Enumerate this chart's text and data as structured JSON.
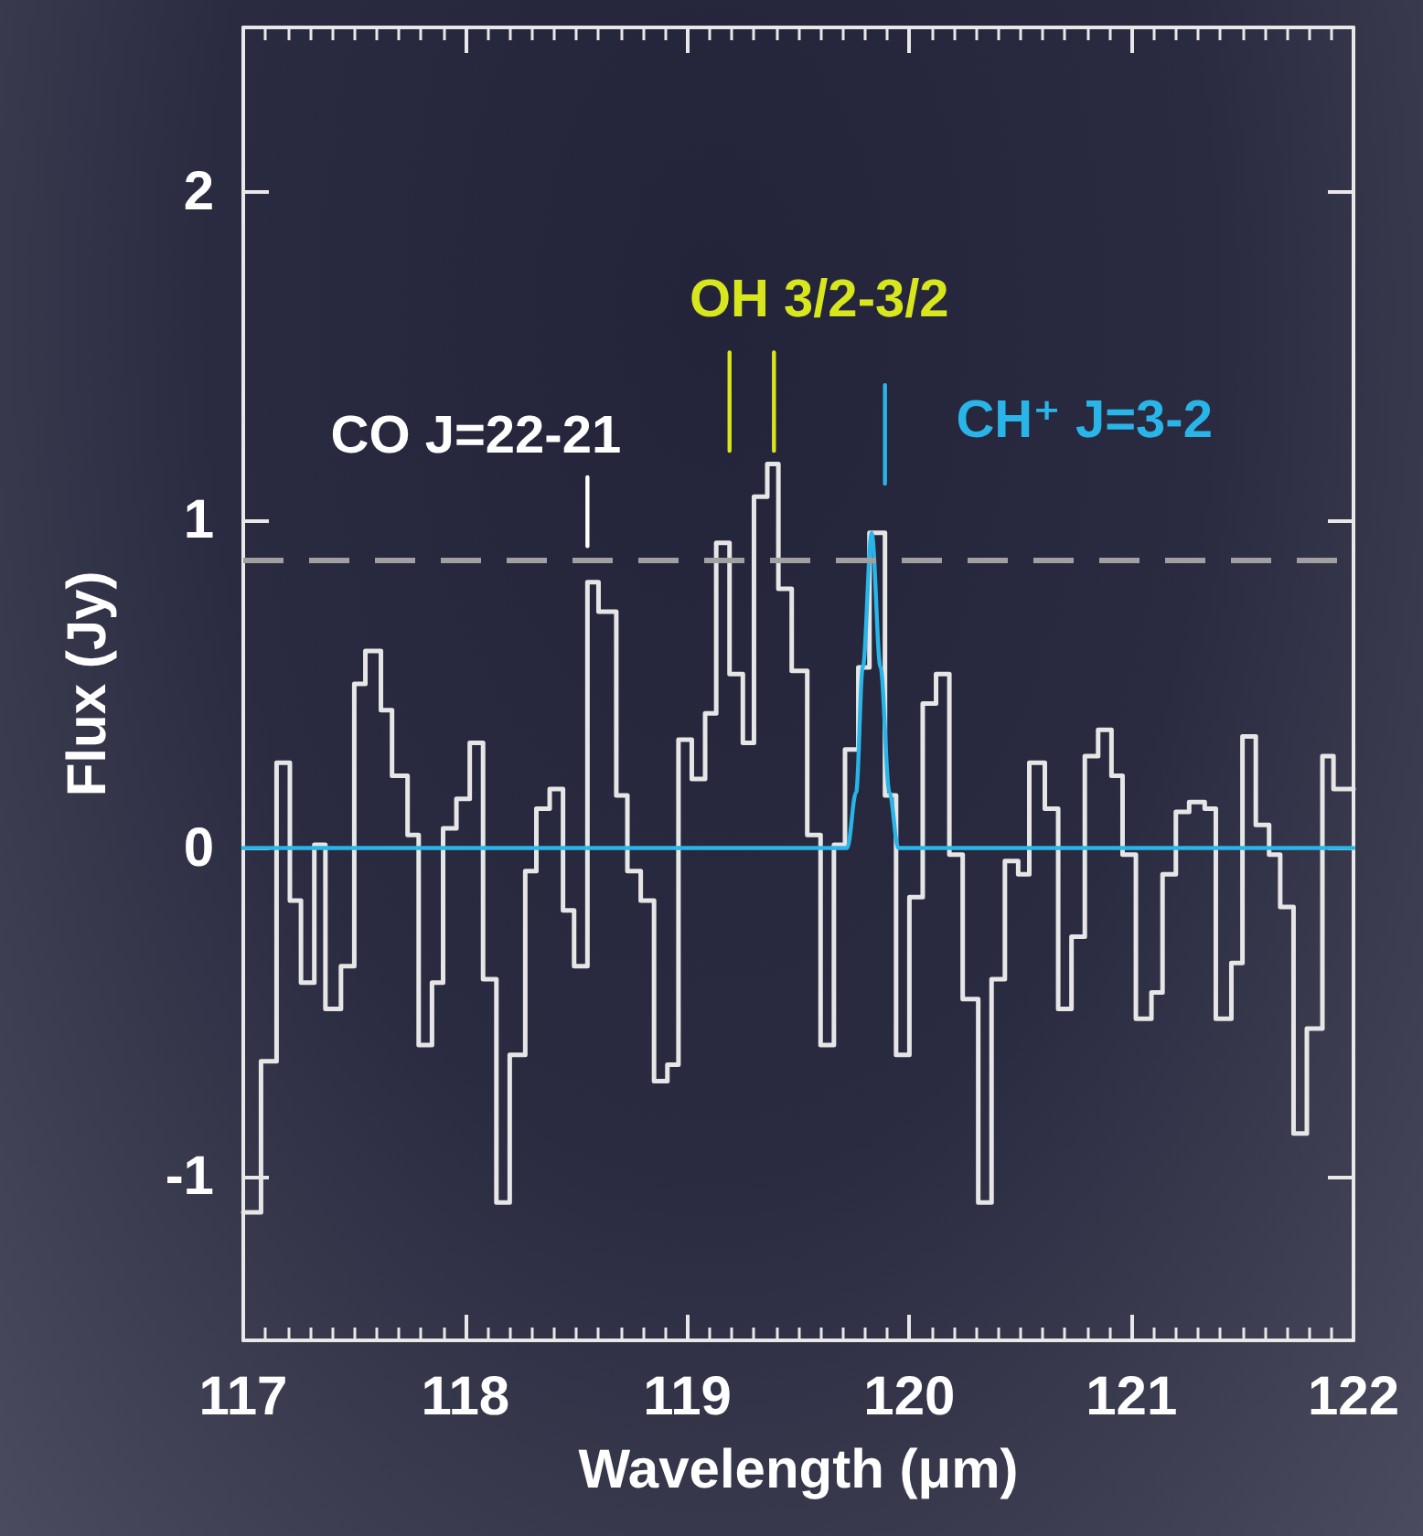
{
  "chart_data": {
    "type": "step",
    "xlabel": "Wavelength (μm)",
    "ylabel": "Flux (Jy)",
    "xlim": [
      117,
      122
    ],
    "xticks": [
      117,
      118,
      119,
      120,
      121,
      122
    ],
    "ylim": [
      -1.5,
      2.5
    ],
    "yticks": [
      -1,
      0,
      1,
      2
    ],
    "grid": false,
    "legend": false,
    "ref_lines": [
      {
        "axis": "y",
        "value": 0.88,
        "color": "#a0a0a0",
        "line_style": "dashed"
      }
    ],
    "series": [
      {
        "color": "#e6e6e6",
        "x": [
          117.0,
          117.08,
          117.15,
          117.21,
          117.26,
          117.32,
          117.37,
          117.44,
          117.5,
          117.55,
          117.62,
          117.67,
          117.74,
          117.79,
          117.85,
          117.9,
          117.96,
          118.02,
          118.08,
          118.14,
          118.2,
          118.27,
          118.32,
          118.38,
          118.44,
          118.49,
          118.55,
          118.6,
          118.68,
          118.73,
          118.79,
          118.85,
          118.91,
          118.96,
          119.02,
          119.08,
          119.13,
          119.19,
          119.25,
          119.3,
          119.36,
          119.41,
          119.47,
          119.54,
          119.6,
          119.66,
          119.71,
          119.77,
          119.82,
          119.89,
          119.94,
          120.0,
          120.06,
          120.12,
          120.18,
          120.24,
          120.31,
          120.37,
          120.43,
          120.49,
          120.54,
          120.61,
          120.67,
          120.73,
          120.79,
          120.85,
          120.91,
          120.96,
          121.02,
          121.09,
          121.14,
          121.2,
          121.26,
          121.33,
          121.38,
          121.45,
          121.5,
          121.56,
          121.62,
          121.67,
          121.73,
          121.79,
          121.86,
          121.91,
          122.0
        ],
        "values": [
          -1.11,
          -0.65,
          0.26,
          -0.16,
          -0.41,
          0.01,
          -0.49,
          -0.36,
          0.5,
          0.6,
          0.42,
          0.22,
          0.04,
          -0.6,
          -0.41,
          0.06,
          0.15,
          0.32,
          -0.4,
          -1.08,
          -0.63,
          -0.07,
          0.12,
          0.18,
          -0.19,
          -0.36,
          0.81,
          0.72,
          0.16,
          -0.07,
          -0.16,
          -0.71,
          -0.66,
          0.33,
          0.21,
          0.41,
          0.93,
          0.53,
          0.32,
          1.07,
          1.17,
          0.79,
          0.54,
          0.04,
          -0.6,
          0.01,
          0.3,
          0.55,
          0.96,
          0.16,
          -0.63,
          -0.15,
          0.44,
          0.53,
          -0.02,
          -0.46,
          -1.08,
          -0.4,
          -0.04,
          -0.08,
          0.26,
          0.12,
          -0.49,
          -0.27,
          0.28,
          0.36,
          0.22,
          -0.02,
          -0.52,
          -0.44,
          -0.08,
          0.11,
          0.14,
          0.12,
          -0.52,
          -0.35,
          0.34,
          0.07,
          -0.02,
          -0.18,
          -0.87,
          -0.55,
          0.28,
          0.18,
          0.18
        ]
      },
      {
        "type": "line",
        "color": "#29b5e8",
        "x": [
          117.0,
          119.72,
          119.76,
          119.79,
          119.83,
          119.87,
          119.91,
          119.95,
          122.0
        ],
        "values": [
          0,
          0,
          0.17,
          0.55,
          0.96,
          0.55,
          0.17,
          0,
          0
        ]
      },
      {
        "type": "line",
        "name": "CO J=22-21",
        "color": "#ffffff",
        "x": [
          118.55,
          118.55
        ],
        "values": [
          0.92,
          1.13
        ]
      },
      {
        "type": "line",
        "name": "OH 3/2-3/2",
        "color": "#d8e61e",
        "x": [
          119.19,
          119.19
        ],
        "values": [
          1.21,
          1.51
        ]
      },
      {
        "type": "line",
        "color": "#d8e61e",
        "x": [
          119.39,
          119.39
        ],
        "values": [
          1.21,
          1.51
        ]
      },
      {
        "type": "line",
        "name": "CH⁺ J=3-2",
        "color": "#29b5e8",
        "x": [
          119.89,
          119.89
        ],
        "values": [
          1.11,
          1.41
        ]
      }
    ]
  }
}
